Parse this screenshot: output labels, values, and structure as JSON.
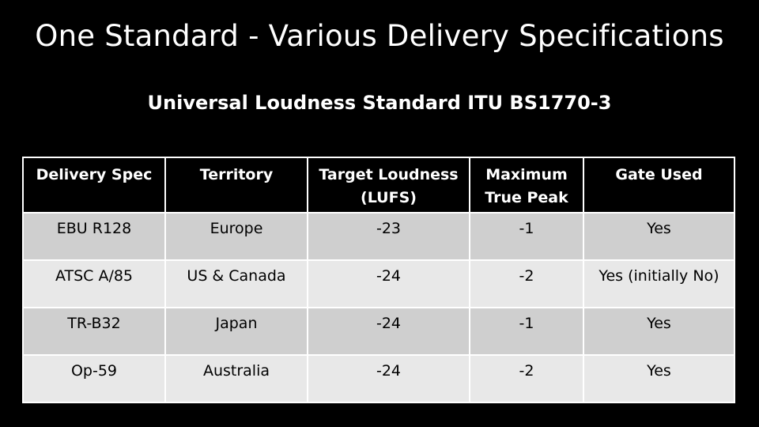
{
  "title": "One Standard - Various Delivery Specifications",
  "subtitle": "Universal Loudness Standard ITU BS1770-3",
  "table": {
    "headers": [
      {
        "line1": "Delivery Spec",
        "line2": ""
      },
      {
        "line1": "Territory",
        "line2": ""
      },
      {
        "line1": "Target Loudness",
        "line2": "(LUFS)"
      },
      {
        "line1": "Maximum",
        "line2": "True Peak"
      },
      {
        "line1": "Gate Used",
        "line2": ""
      }
    ],
    "rows": [
      [
        "EBU R128",
        "Europe",
        "-23",
        "-1",
        "Yes"
      ],
      [
        "ATSC A/85",
        "US & Canada",
        "-24",
        "-2",
        "Yes (initially No)"
      ],
      [
        "TR-B32",
        "Japan",
        "-24",
        "-1",
        "Yes"
      ],
      [
        "Op-59",
        "Australia",
        "-24",
        "-2",
        "Yes"
      ]
    ]
  },
  "colors": {
    "background": "#000000",
    "header_bg": "#000000",
    "row_dark": "#cfcfcf",
    "row_light": "#e8e8e8",
    "border": "#ffffff"
  }
}
